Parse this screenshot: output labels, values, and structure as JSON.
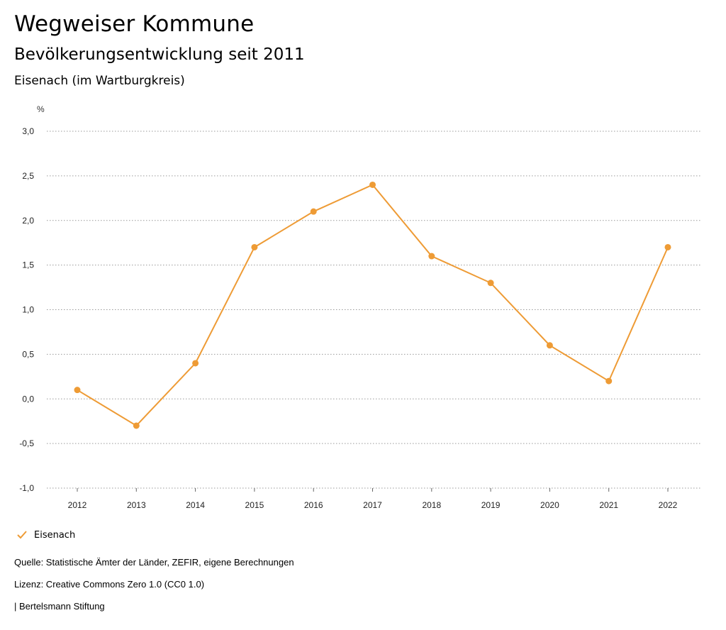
{
  "header": {
    "title": "Wegweiser Kommune",
    "subtitle": "Bevölkerungsentwicklung seit 2011",
    "region": "Eisenach (im Wartburgkreis)"
  },
  "chart_data": {
    "type": "line",
    "unit_label": "%",
    "categories": [
      "2012",
      "2013",
      "2014",
      "2015",
      "2016",
      "2017",
      "2018",
      "2019",
      "2020",
      "2021",
      "2022"
    ],
    "series": [
      {
        "name": "Eisenach",
        "color": "#EE9B35",
        "values": [
          0.1,
          -0.3,
          0.4,
          1.7,
          2.1,
          2.4,
          1.6,
          1.3,
          0.6,
          0.2,
          1.7
        ]
      }
    ],
    "y_ticks": [
      3.0,
      2.5,
      2.0,
      1.5,
      1.0,
      0.5,
      0.0,
      -0.5,
      -1.0
    ],
    "y_tick_labels": [
      "3,0",
      "2,5",
      "2,0",
      "1,5",
      "1,0",
      "0,5",
      "0,0",
      "-0,5",
      "-1,0"
    ],
    "ylim": [
      -1.0,
      3.0
    ],
    "grid": true,
    "legend_position": "bottom-left"
  },
  "legend": {
    "label": "Eisenach",
    "icon": "check-icon"
  },
  "footer": {
    "source": "Quelle: Statistische Ämter der Länder, ZEFIR, eigene Berechnungen",
    "license": "Lizenz: Creative Commons Zero 1.0 (CC0 1.0)",
    "publisher": "| Bertelsmann Stiftung"
  }
}
